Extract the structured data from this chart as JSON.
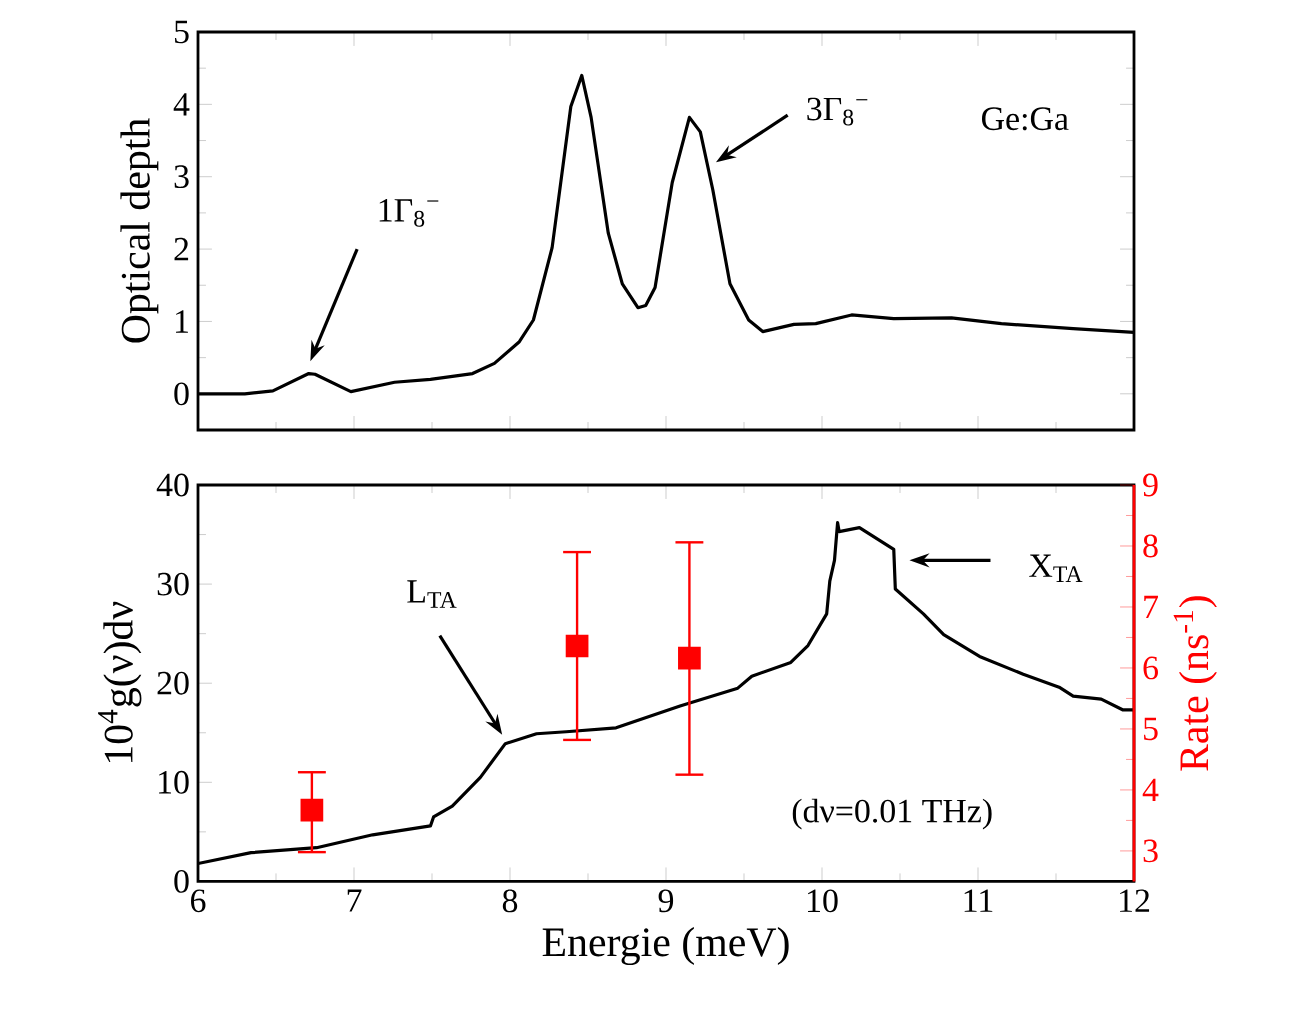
{
  "chart_data": [
    {
      "type": "line",
      "ylabel": "Optical depth",
      "xlim": [
        6,
        12
      ],
      "xticks": [
        6,
        7,
        8,
        9,
        10,
        11,
        12
      ],
      "ylim": [
        -0.5,
        5
      ],
      "yticks": [
        0,
        1,
        2,
        3,
        4,
        5
      ],
      "tick_labels": "y",
      "annotations": [
        "1Γ$_{8}$$^{−}$",
        "3Γ$_{8}$$^{−}$",
        "Ge:Ga"
      ],
      "series": [
        {
          "color": "#000000",
          "x": [
            6,
            6.3,
            6.48,
            6.71,
            6.75,
            6.98,
            7.26,
            7.49,
            7.76,
            7.9,
            8.06,
            8.15,
            8.27,
            8.39,
            8.46,
            8.52,
            8.63,
            8.72,
            8.82,
            8.87,
            8.93,
            9.04,
            9.15,
            9.22,
            9.3,
            9.41,
            9.53,
            9.62,
            9.82,
            9.96,
            10.19,
            10.46,
            10.83,
            11.15,
            11.61,
            12
          ],
          "values": [
            0,
            0,
            0.04,
            0.28,
            0.27,
            0.03,
            0.16,
            0.2,
            0.28,
            0.42,
            0.72,
            1.02,
            2.02,
            3.97,
            4.4,
            3.82,
            2.22,
            1.52,
            1.19,
            1.22,
            1.47,
            2.92,
            3.82,
            3.62,
            2.82,
            1.52,
            1.02,
            0.86,
            0.96,
            0.97,
            1.09,
            1.04,
            1.05,
            0.97,
            0.9,
            0.85
          ]
        }
      ]
    },
    {
      "type": "line",
      "xlabel": "Energie (meV)",
      "ylabel": "10$^{4}$g(ν)dν",
      "y2label": "Rate (ns$^{-1}$)",
      "xlim": [
        6,
        12
      ],
      "xticks": [
        6,
        7,
        8,
        9,
        10,
        11,
        12
      ],
      "ylim": [
        0,
        40
      ],
      "yticks": [
        0,
        10,
        20,
        30,
        40
      ],
      "y2lim": [
        2.5,
        9
      ],
      "y2ticks": [
        3,
        4,
        5,
        6,
        7,
        8,
        9
      ],
      "annotations": [
        "L$_{TA}$",
        "X$_{TA}$",
        "(dν=0.01 THz)"
      ],
      "series": [
        {
          "color": "#000000",
          "x": [
            6,
            6.34,
            6.76,
            7.12,
            7.49,
            7.51,
            7.63,
            7.81,
            7.97,
            8.17,
            8.36,
            8.68,
            9.09,
            9.46,
            9.55,
            9.8,
            9.91,
            10.03,
            10.05,
            10.08,
            10.1,
            10.11,
            10.24,
            10.46,
            10.47,
            10.65,
            10.78,
            11.01,
            11.29,
            11.52,
            11.61,
            11.79,
            11.93,
            12
          ],
          "values": [
            1.8,
            2.9,
            3.4,
            4.7,
            5.6,
            6.5,
            7.6,
            10.5,
            13.9,
            14.9,
            15.1,
            15.5,
            17.7,
            19.5,
            20.7,
            22.1,
            23.8,
            27.0,
            30.3,
            32.4,
            36.2,
            35.3,
            35.7,
            33.5,
            29.5,
            27.0,
            24.9,
            22.7,
            20.9,
            19.6,
            18.7,
            18.4,
            17.3,
            17.3
          ]
        },
        {
          "type": "scatter",
          "axis": "y2",
          "color": "#ff0000",
          "marker": "square",
          "x": [
            6.73,
            8.43,
            9.15
          ],
          "values": [
            3.67,
            6.36,
            6.16
          ],
          "errors": [
            [
              2.98,
              4.29
            ],
            [
              4.82,
              7.9
            ],
            [
              4.25,
              8.06
            ]
          ]
        }
      ]
    }
  ]
}
